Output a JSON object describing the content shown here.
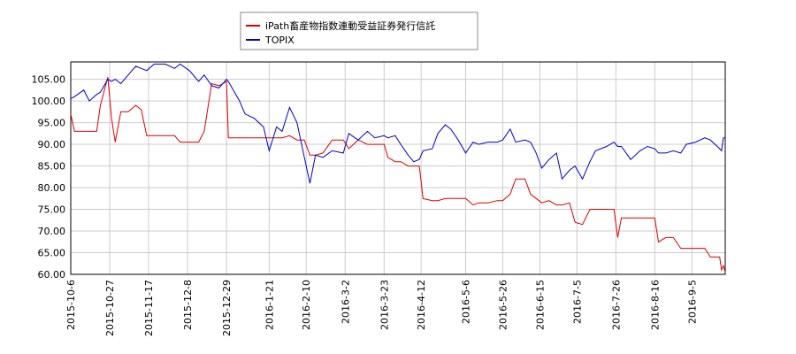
{
  "chart_data": {
    "type": "line",
    "x": [
      "2015-10-6",
      "2015-10-8",
      "2015-10-13",
      "2015-10-16",
      "2015-10-20",
      "2015-10-22",
      "2015-10-26",
      "2015-10-28",
      "2015-10-30",
      "2015-11-2",
      "2015-11-6",
      "2015-11-10",
      "2015-11-13",
      "2015-11-16",
      "2015-11-20",
      "2015-11-26",
      "2015-12-1",
      "2015-12-4",
      "2015-12-9",
      "2015-12-14",
      "2015-12-17",
      "2015-12-21",
      "2015-12-25",
      "2015-12-29",
      "2015-12-30",
      "2016-1-5",
      "2016-1-8",
      "2016-1-13",
      "2016-1-18",
      "2016-1-21",
      "2016-1-25",
      "2016-1-28",
      "2016-2-1",
      "2016-2-5",
      "2016-2-9",
      "2016-2-12",
      "2016-2-15",
      "2016-2-19",
      "2016-2-24",
      "2016-3-1",
      "2016-3-4",
      "2016-3-9",
      "2016-3-14",
      "2016-3-18",
      "2016-3-23",
      "2016-3-25",
      "2016-3-29",
      "2016-4-1",
      "2016-4-5",
      "2016-4-8",
      "2016-4-11",
      "2016-4-13",
      "2016-4-18",
      "2016-4-21",
      "2016-4-25",
      "2016-4-28",
      "2016-5-2",
      "2016-5-6",
      "2016-5-10",
      "2016-5-13",
      "2016-5-18",
      "2016-5-23",
      "2016-5-26",
      "2016-5-30",
      "2016-6-2",
      "2016-6-7",
      "2016-6-10",
      "2016-6-13",
      "2016-6-16",
      "2016-6-20",
      "2016-6-24",
      "2016-6-27",
      "2016-7-1",
      "2016-7-4",
      "2016-7-8",
      "2016-7-12",
      "2016-7-15",
      "2016-7-21",
      "2016-7-25",
      "2016-7-27",
      "2016-7-29",
      "2016-8-3",
      "2016-8-8",
      "2016-8-12",
      "2016-8-16",
      "2016-8-18",
      "2016-8-22",
      "2016-8-26",
      "2016-8-30",
      "2016-9-2",
      "2016-9-7",
      "2016-9-12",
      "2016-9-15",
      "2016-9-20",
      "2016-9-21",
      "2016-9-22",
      "2016-9-23"
    ],
    "series": [
      {
        "name": "iPath畜産物指数連動受益証券発行信託",
        "color": "#dd0000",
        "values": [
          97,
          93,
          93,
          93,
          93,
          99,
          105.5,
          96,
          90.5,
          97.5,
          97.5,
          99,
          98,
          92,
          92,
          92,
          92,
          90.5,
          90.5,
          90.5,
          93,
          104,
          103.5,
          104.5,
          91.5,
          91.5,
          91.5,
          91.5,
          91.5,
          91.5,
          91.5,
          91.5,
          92,
          91,
          91,
          87.5,
          87.5,
          88,
          91,
          91,
          89,
          91,
          90,
          90,
          90,
          87,
          86,
          86,
          85,
          85,
          85,
          77.5,
          77,
          77,
          77.5,
          77.5,
          77.5,
          77.5,
          76,
          76.5,
          76.5,
          77,
          77,
          78.5,
          82,
          82,
          78.5,
          77.5,
          76.5,
          77,
          76,
          76,
          76.5,
          72,
          71.5,
          75,
          75,
          75,
          75,
          68.5,
          73,
          73,
          73,
          73,
          73,
          67.5,
          68.5,
          68.5,
          66,
          66,
          66,
          66,
          64,
          64,
          61,
          62,
          60.5
        ]
      },
      {
        "name": "TOPIX",
        "color": "#0000cc",
        "values": [
          100.5,
          101,
          102.5,
          100,
          101.5,
          102,
          105,
          104.5,
          105,
          104,
          106,
          108,
          107.5,
          107,
          108.5,
          108.5,
          107.5,
          108.5,
          107,
          104.5,
          106,
          103.5,
          103,
          105,
          104.5,
          100,
          97,
          96,
          94,
          88.5,
          94,
          93,
          98.5,
          95,
          87,
          81,
          87.5,
          87,
          88.5,
          88,
          92.5,
          91,
          93,
          91.5,
          92,
          91.5,
          92,
          90,
          87.5,
          86,
          86.5,
          88.5,
          89,
          92.5,
          94.5,
          93.5,
          91,
          88,
          90.5,
          90,
          90.5,
          90.5,
          91,
          93.5,
          90.5,
          91,
          90.5,
          88,
          84.5,
          86.5,
          88,
          82,
          84,
          85,
          82,
          86,
          88.5,
          89.5,
          90.5,
          89.5,
          89.5,
          86.5,
          88.5,
          89.5,
          89,
          88,
          88,
          88.5,
          88,
          90,
          90.5,
          91.5,
          91,
          89,
          88.5,
          91.5,
          91.5
        ]
      }
    ],
    "xlim": [
      "2015-10-6",
      "2016-9-23"
    ],
    "xticks": [
      "2015-10-6",
      "2015-10-27",
      "2015-11-17",
      "2015-12-8",
      "2015-12-29",
      "2016-1-21",
      "2016-2-10",
      "2016-3-2",
      "2016-3-23",
      "2016-4-12",
      "2016-5-6",
      "2016-5-26",
      "2016-6-15",
      "2016-7-5",
      "2016-7-26",
      "2016-8-16",
      "2016-9-5"
    ],
    "ylim": [
      60,
      109
    ],
    "yticks": [
      {
        "value": 60,
        "label": "60.00"
      },
      {
        "value": 65,
        "label": "65.00"
      },
      {
        "value": 70,
        "label": "70.00"
      },
      {
        "value": 75,
        "label": "75.00"
      },
      {
        "value": 80,
        "label": "80.00"
      },
      {
        "value": 85,
        "label": "85.00"
      },
      {
        "value": 90,
        "label": "90.00"
      },
      {
        "value": 95,
        "label": "95.00"
      },
      {
        "value": 100,
        "label": "100.00"
      },
      {
        "value": 105,
        "label": "105.00"
      }
    ],
    "grid": true,
    "legend": "top"
  }
}
